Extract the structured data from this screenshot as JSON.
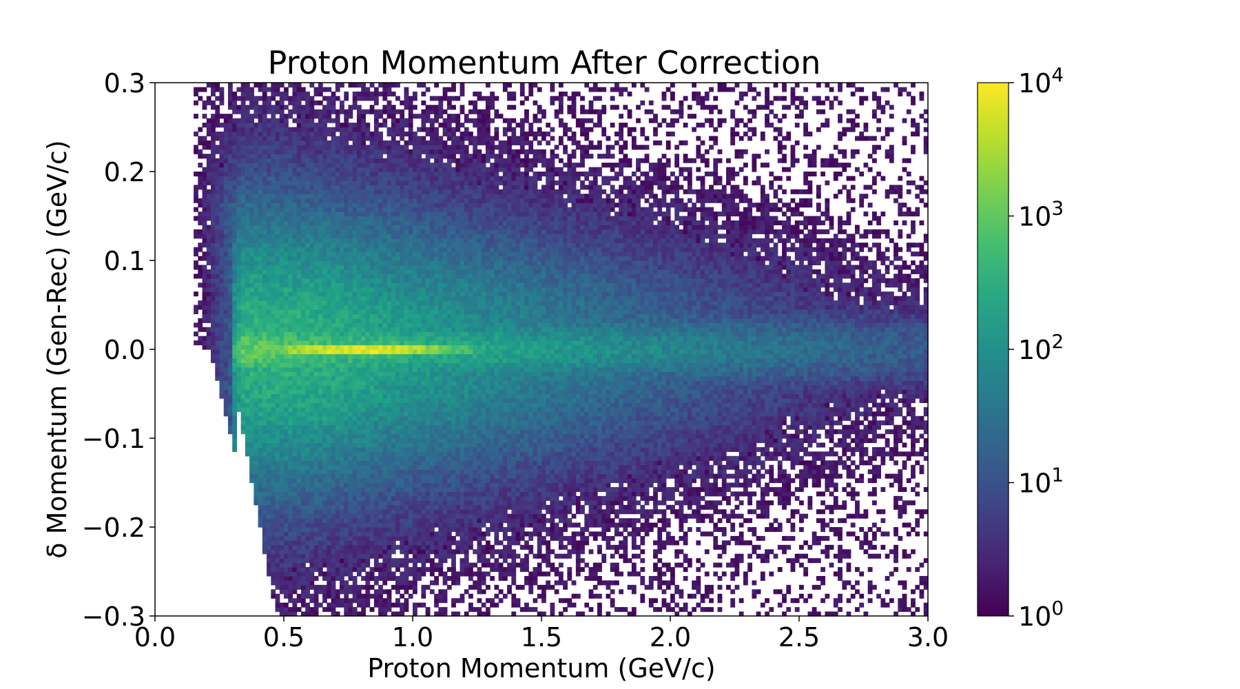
{
  "chart_data": {
    "type": "heatmap",
    "title": "Proton Momentum After Correction",
    "xlabel": "Proton Momentum (GeV/c)",
    "ylabel": "δ Momentum (Gen-Rec) (GeV/c)",
    "xlim": [
      0.0,
      3.0
    ],
    "ylim": [
      -0.3,
      0.3
    ],
    "x_ticks": [
      "0.0",
      "0.5",
      "1.0",
      "1.5",
      "2.0",
      "2.5",
      "3.0"
    ],
    "y_ticks": [
      "−0.3",
      "−0.2",
      "−0.1",
      "0.0",
      "0.1",
      "0.2",
      "0.3"
    ],
    "colorbar": {
      "scale": "log",
      "range": [
        1,
        10000
      ],
      "colormap": "viridis",
      "ticks": [
        {
          "base": "10",
          "exp": "0"
        },
        {
          "base": "10",
          "exp": "1"
        },
        {
          "base": "10",
          "exp": "2"
        },
        {
          "base": "10",
          "exp": "3"
        },
        {
          "base": "10",
          "exp": "4"
        }
      ]
    },
    "bins": {
      "x": 180,
      "y": 120
    },
    "features": {
      "peak_band_center_dy": 0.0,
      "peak_band_x_range": [
        0.5,
        1.2
      ],
      "peak_counts": 10000,
      "lower_momentum_cutoff": 0.2
    }
  }
}
